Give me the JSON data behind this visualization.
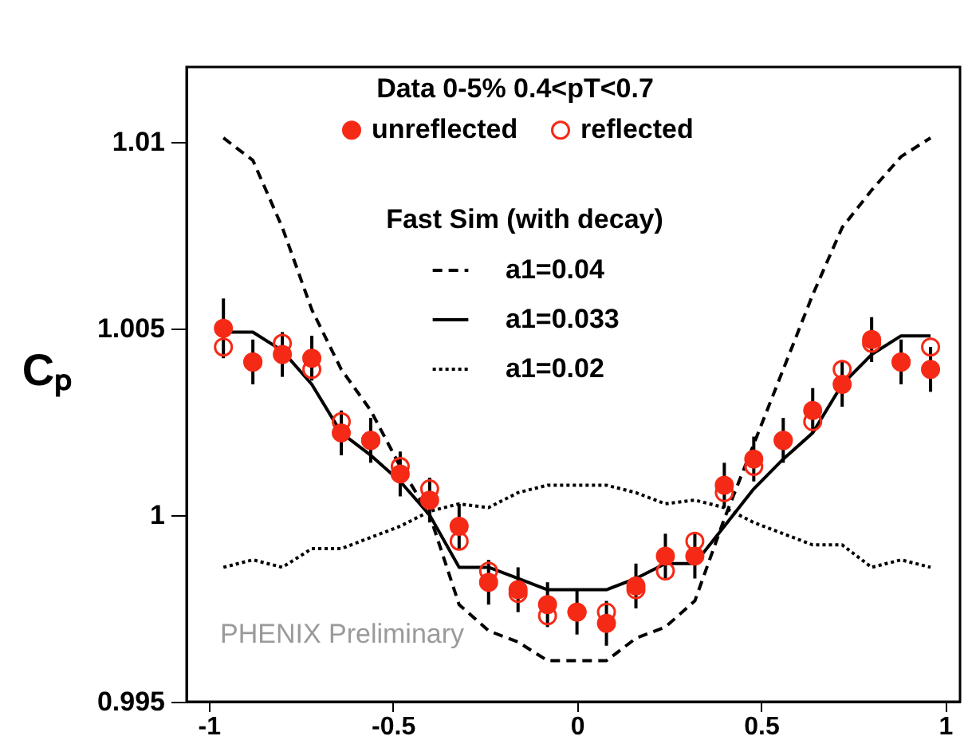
{
  "chart_data": {
    "type": "scatter",
    "ylabel": "Cₚ",
    "legend_title": "Data 0-5% 0.4<pT<0.7",
    "legend": "top",
    "annotations": [
      "Fast Sim (with decay)",
      "PHENIX Preliminary"
    ],
    "x": [
      -0.96,
      -0.88,
      -0.8,
      -0.72,
      -0.64,
      -0.56,
      -0.48,
      -0.4,
      -0.32,
      -0.24,
      -0.16,
      -0.08,
      0,
      0.08,
      0.16,
      0.24,
      0.32,
      0.4,
      0.48,
      0.56,
      0.64,
      0.72,
      0.8,
      0.88,
      0.96
    ],
    "xlim": [
      -1.06,
      1.04
    ],
    "xticks": [
      -1,
      -0.5,
      0,
      0.5,
      1
    ],
    "ylim": [
      0.995,
      1.012
    ],
    "yticks": [
      0.995,
      1,
      1.005,
      1.01
    ],
    "series": [
      {
        "name": "unreflected",
        "type": "scatter",
        "marker": "circle",
        "color": "#f52a16",
        "values": [
          1.005,
          1.0041,
          1.0043,
          1.0042,
          1.0022,
          1.002,
          1.0011,
          1.0004,
          0.9997,
          0.9982,
          0.998,
          0.9976,
          0.9974,
          0.9971,
          0.9981,
          0.9989,
          0.9989,
          1.0008,
          1.0015,
          1.002,
          1.0028,
          1.0035,
          1.0047,
          1.0041,
          1.0039
        ],
        "errors": [
          0.0008,
          0.0006,
          0.0006,
          0.0006,
          0.0006,
          0.0006,
          0.0006,
          0.0006,
          0.0006,
          0.0006,
          0.0006,
          0.0006,
          0.0006,
          0.0006,
          0.0006,
          0.0006,
          0.0006,
          0.0006,
          0.0006,
          0.0006,
          0.0006,
          0.0006,
          0.0006,
          0.0006,
          0.0006
        ]
      },
      {
        "name": "reflected",
        "type": "scatter",
        "marker": "circle",
        "color": "#f52a16",
        "values": [
          1.0045,
          1.0041,
          1.0046,
          1.0039,
          1.0025,
          1.002,
          1.0013,
          1.0007,
          0.9993,
          0.9985,
          0.9979,
          0.9973,
          0.9974,
          0.9974,
          0.998,
          0.9985,
          0.9993,
          1.0006,
          1.0013,
          1.002,
          1.0025,
          1.0039,
          1.0046,
          1.0041,
          1.0045
        ]
      },
      {
        "name": "a1=0.04",
        "type": "line",
        "line_style": "dashed",
        "color": "#000000",
        "values": [
          1.0101,
          1.0095,
          1.0077,
          1.0055,
          1.0039,
          1.0028,
          1.0013,
          1.0,
          0.9976,
          0.9969,
          0.9966,
          0.9961,
          0.9961,
          0.9961,
          0.9967,
          0.997,
          0.9977,
          0.9999,
          1.0019,
          1.0039,
          1.0059,
          1.0077,
          1.0087,
          1.0096,
          1.0101
        ]
      },
      {
        "name": "a1=0.033",
        "type": "line",
        "line_style": "solid",
        "color": "#000000",
        "values": [
          1.0049,
          1.0049,
          1.0044,
          1.0035,
          1.0022,
          1.0016,
          1.0009,
          1.0,
          0.9986,
          0.9986,
          0.9983,
          0.998,
          0.998,
          0.998,
          0.9983,
          0.9987,
          0.9987,
          0.9997,
          1.0007,
          1.0015,
          1.0022,
          1.0035,
          1.0043,
          1.0048,
          1.0048
        ]
      },
      {
        "name": "a1=0.02",
        "type": "line",
        "line_style": "dotted",
        "color": "#000000",
        "values": [
          0.9986,
          0.9988,
          0.9986,
          0.9991,
          0.9991,
          0.9994,
          0.9997,
          1.0001,
          1.0003,
          1.0002,
          1.0006,
          1.0008,
          1.0008,
          1.0008,
          1.0006,
          1.0003,
          1.0004,
          1.0002,
          0.9998,
          0.9995,
          0.9992,
          0.9992,
          0.9986,
          0.9988,
          0.9986
        ]
      }
    ]
  }
}
